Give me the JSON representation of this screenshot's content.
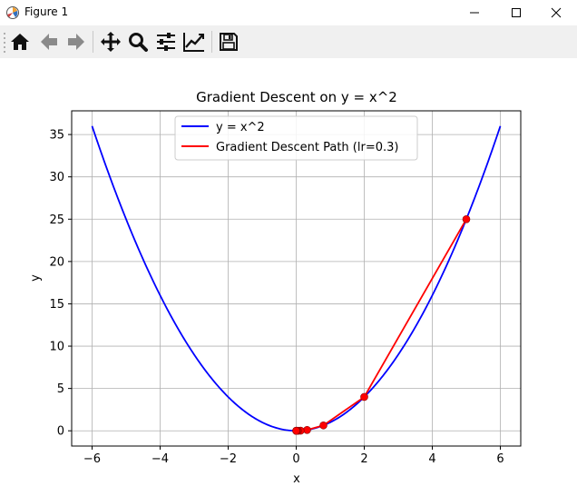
{
  "window": {
    "title": "Figure 1"
  },
  "toolbar": {
    "buttons": [
      {
        "name": "home-icon",
        "tooltip": "Home"
      },
      {
        "name": "back-icon",
        "tooltip": "Back"
      },
      {
        "name": "forward-icon",
        "tooltip": "Forward"
      },
      {
        "name": "pan-icon",
        "tooltip": "Pan"
      },
      {
        "name": "zoom-icon",
        "tooltip": "Zoom"
      },
      {
        "name": "subplots-icon",
        "tooltip": "Subplots"
      },
      {
        "name": "edit-curve-icon",
        "tooltip": "Customize"
      },
      {
        "name": "save-icon",
        "tooltip": "Save"
      }
    ]
  },
  "chart_data": {
    "type": "line",
    "title": "Gradient Descent on y = x^2",
    "xlabel": "x",
    "ylabel": "y",
    "xlim": [
      -6.6,
      6.6
    ],
    "ylim": [
      -1.8,
      37.8
    ],
    "xticks": [
      -6,
      -4,
      -2,
      0,
      2,
      4,
      6
    ],
    "yticks": [
      0,
      5,
      10,
      15,
      20,
      25,
      30,
      35
    ],
    "grid": true,
    "legend_position": "top-center",
    "series": [
      {
        "name": "y = x^2",
        "color": "#0000ff",
        "function": "x^2",
        "x_range": [
          -6,
          6
        ]
      },
      {
        "name": "Gradient Descent Path (lr=0.3)",
        "color": "#ff0000",
        "x": [
          5,
          2,
          0.8,
          0.32,
          0.128,
          0.0512,
          0.02048,
          0.008192,
          0.0032768,
          0.00131072,
          0.000524288
        ],
        "y": [
          25,
          4,
          0.64,
          0.1024,
          0.016384,
          0.00262144,
          0.000419,
          6.71e-05,
          1.07e-05,
          1.7e-06,
          3e-07
        ],
        "markers": true
      }
    ]
  }
}
